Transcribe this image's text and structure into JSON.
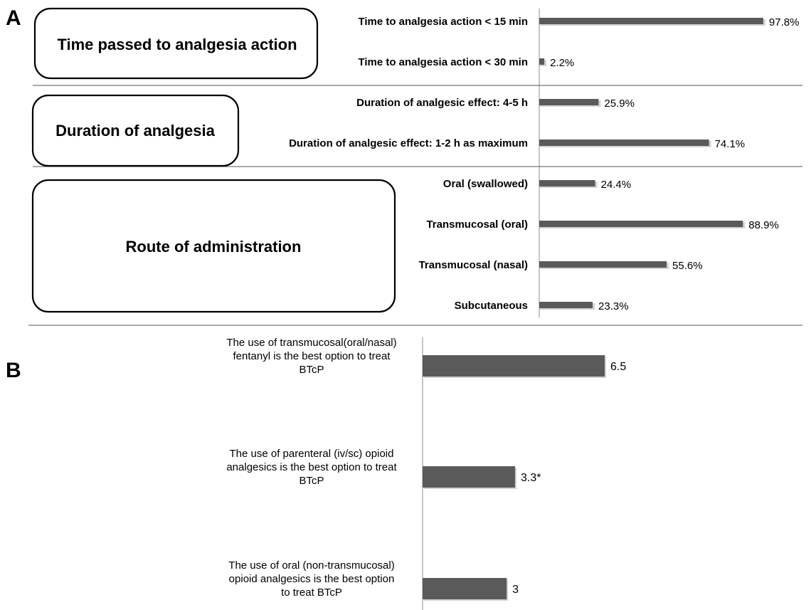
{
  "panels": {
    "a_letter": "A",
    "b_letter": "B"
  },
  "colors": {
    "bar": "#5a5a5a",
    "bar_shadow": "#d2d2d2",
    "axis": "#8c8c8c",
    "separator": "#555555",
    "box_border": "#000000"
  },
  "chart_data": [
    {
      "type": "bar",
      "orientation": "horizontal",
      "panel": "A",
      "xlim": [
        0,
        100
      ],
      "unit": "%",
      "groups": [
        {
          "label": "Time passed to analgesia action",
          "items": [
            {
              "category": "Time to analgesia action < 15 min",
              "value": 97.8,
              "display": "97.8%"
            },
            {
              "category": "Time to analgesia action < 30 min",
              "value": 2.2,
              "display": "2.2%"
            }
          ]
        },
        {
          "label": "Duration of analgesia",
          "items": [
            {
              "category": "Duration of analgesic effect: 4-5 h",
              "value": 25.9,
              "display": "25.9%"
            },
            {
              "category": "Duration of analgesic effect: 1-2 h as maximum",
              "value": 74.1,
              "display": "74.1%"
            }
          ]
        },
        {
          "label": "Route of administration",
          "items": [
            {
              "category": "Oral (swallowed)",
              "value": 24.4,
              "display": "24.4%"
            },
            {
              "category": "Transmucosal (oral)",
              "value": 88.9,
              "display": "88.9%"
            },
            {
              "category": "Transmucosal (nasal)",
              "value": 55.6,
              "display": "55.6%"
            },
            {
              "category": "Subcutaneous",
              "value": 23.3,
              "display": "23.3%"
            }
          ]
        }
      ]
    },
    {
      "type": "bar",
      "orientation": "horizontal",
      "panel": "B",
      "xlim": [
        0,
        10
      ],
      "items": [
        {
          "category_lines": [
            "The use of transmucosal(oral/nasal)",
            "fentanyl is the best option to treat",
            "BTcP"
          ],
          "value": 6.5,
          "display": "6.5"
        },
        {
          "category_lines": [
            "The use of parenteral (iv/sc) opioid",
            "analgesics is the best option to treat",
            "BTcP"
          ],
          "value": 3.3,
          "display": "3.3*"
        },
        {
          "category_lines": [
            "The use of oral (non-transmucosal)",
            "opioid analgesics is the best option",
            "to treat BTcP"
          ],
          "value": 3,
          "display": "3"
        }
      ]
    }
  ]
}
